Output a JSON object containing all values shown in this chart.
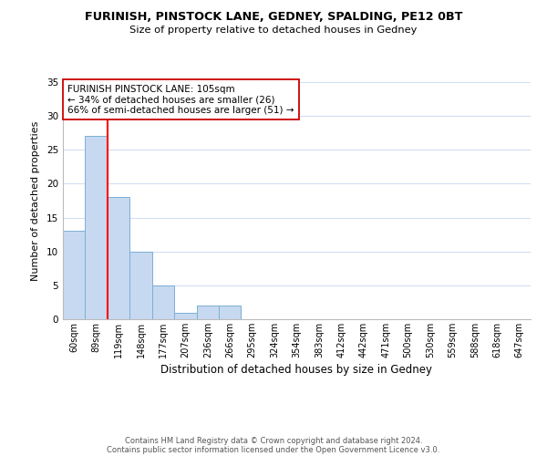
{
  "title1": "FURINISH, PINSTOCK LANE, GEDNEY, SPALDING, PE12 0BT",
  "title2": "Size of property relative to detached houses in Gedney",
  "xlabel": "Distribution of detached houses by size in Gedney",
  "ylabel": "Number of detached properties",
  "bar_labels": [
    "60sqm",
    "89sqm",
    "119sqm",
    "148sqm",
    "177sqm",
    "207sqm",
    "236sqm",
    "266sqm",
    "295sqm",
    "324sqm",
    "354sqm",
    "383sqm",
    "412sqm",
    "442sqm",
    "471sqm",
    "500sqm",
    "530sqm",
    "559sqm",
    "588sqm",
    "618sqm",
    "647sqm"
  ],
  "bar_values": [
    13,
    27,
    18,
    10,
    5,
    1,
    2,
    2,
    0,
    0,
    0,
    0,
    0,
    0,
    0,
    0,
    0,
    0,
    0,
    0,
    0
  ],
  "bar_color": "#c6d9f0",
  "bar_edge_color": "#7bafd4",
  "red_line_x": 1.5,
  "ylim": [
    0,
    35
  ],
  "yticks": [
    0,
    5,
    10,
    15,
    20,
    25,
    30,
    35
  ],
  "annotation_title": "FURINISH PINSTOCK LANE: 105sqm",
  "annotation_line1": "← 34% of detached houses are smaller (26)",
  "annotation_line2": "66% of semi-detached houses are larger (51) →",
  "footer1": "Contains HM Land Registry data © Crown copyright and database right 2024.",
  "footer2": "Contains public sector information licensed under the Open Government Licence v3.0.",
  "background_color": "#ffffff",
  "grid_color": "#d0dff0"
}
